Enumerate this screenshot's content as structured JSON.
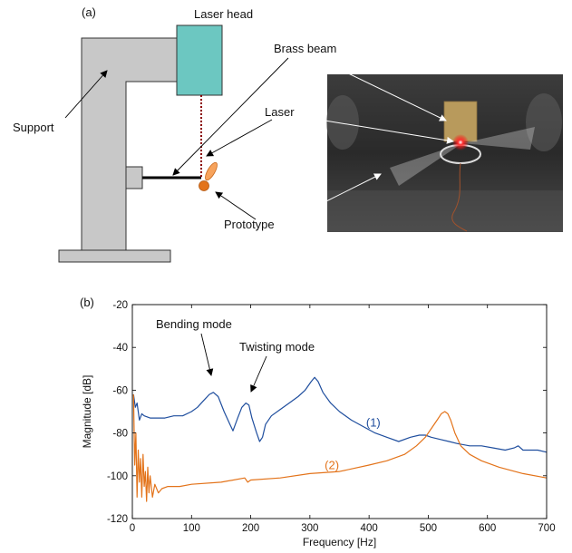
{
  "panel_a": {
    "label": "(a)",
    "laser_head_label": "Laser head",
    "brass_beam_label": "Brass beam",
    "support_label": "Support",
    "laser_label": "Laser",
    "prototype_label": "Prototype",
    "colors": {
      "support": "#c8c8c8",
      "laser_head": "#6cc7c1",
      "laser_beam": "#8b0000",
      "prototype": "#f08a3c"
    }
  },
  "panel_b": {
    "label": "(b)",
    "annotations": {
      "bending": "Bending mode",
      "twisting": "Twisting mode"
    }
  },
  "chart_data": {
    "type": "line",
    "xlabel": "Frequency [Hz]",
    "ylabel": "Magnitude [dB]",
    "xlim": [
      0,
      700
    ],
    "ylim": [
      -120,
      -20
    ],
    "xticks": [
      0,
      100,
      200,
      300,
      400,
      500,
      600,
      700
    ],
    "yticks": [
      -20,
      -40,
      -60,
      -80,
      -100,
      -120
    ],
    "grid": false,
    "series": [
      {
        "name": "(1)",
        "color": "#1f4e9e",
        "x": [
          2,
          5,
          8,
          12,
          16,
          20,
          30,
          40,
          55,
          70,
          85,
          100,
          110,
          120,
          130,
          137,
          145,
          155,
          165,
          170,
          178,
          185,
          192,
          197,
          202,
          210,
          215,
          220,
          225,
          235,
          250,
          265,
          280,
          292,
          302,
          308,
          314,
          322,
          335,
          350,
          370,
          390,
          410,
          430,
          450,
          470,
          485,
          495,
          505,
          520,
          535,
          550,
          570,
          590,
          610,
          630,
          645,
          652,
          660,
          670,
          685,
          700
        ],
        "values": [
          -62,
          -68,
          -66,
          -74,
          -71,
          -72,
          -73,
          -73,
          -73,
          -72,
          -72,
          -70,
          -68,
          -65,
          -62,
          -61,
          -63,
          -70,
          -76,
          -79,
          -73,
          -68,
          -66,
          -67,
          -73,
          -80,
          -84,
          -82,
          -76,
          -72,
          -69,
          -66,
          -63,
          -60,
          -56,
          -54,
          -56,
          -61,
          -66,
          -70,
          -74,
          -77,
          -80,
          -82,
          -84,
          -82,
          -81,
          -81,
          -82,
          -83,
          -84,
          -85,
          -86,
          -86,
          -87,
          -88,
          -87,
          -86,
          -88,
          -88,
          -88,
          -89
        ]
      },
      {
        "name": "(2)",
        "color": "#e3731a",
        "x": [
          2,
          4,
          6,
          8,
          10,
          12,
          14,
          16,
          18,
          20,
          22,
          24,
          26,
          28,
          30,
          34,
          38,
          44,
          50,
          60,
          80,
          100,
          150,
          190,
          195,
          200,
          250,
          300,
          350,
          400,
          430,
          460,
          480,
          495,
          505,
          515,
          522,
          528,
          533,
          538,
          545,
          555,
          570,
          590,
          620,
          660,
          700
        ],
        "values": [
          -62,
          -95,
          -80,
          -110,
          -88,
          -103,
          -92,
          -110,
          -90,
          -105,
          -98,
          -112,
          -96,
          -108,
          -100,
          -110,
          -104,
          -108,
          -106,
          -105,
          -105,
          -104,
          -103,
          -101,
          -103,
          -102,
          -101,
          -99,
          -98,
          -95,
          -93,
          -90,
          -86,
          -82,
          -78,
          -74,
          -71,
          -70,
          -71,
          -74,
          -80,
          -86,
          -90,
          -93,
          -96,
          -99,
          -101
        ]
      }
    ]
  }
}
